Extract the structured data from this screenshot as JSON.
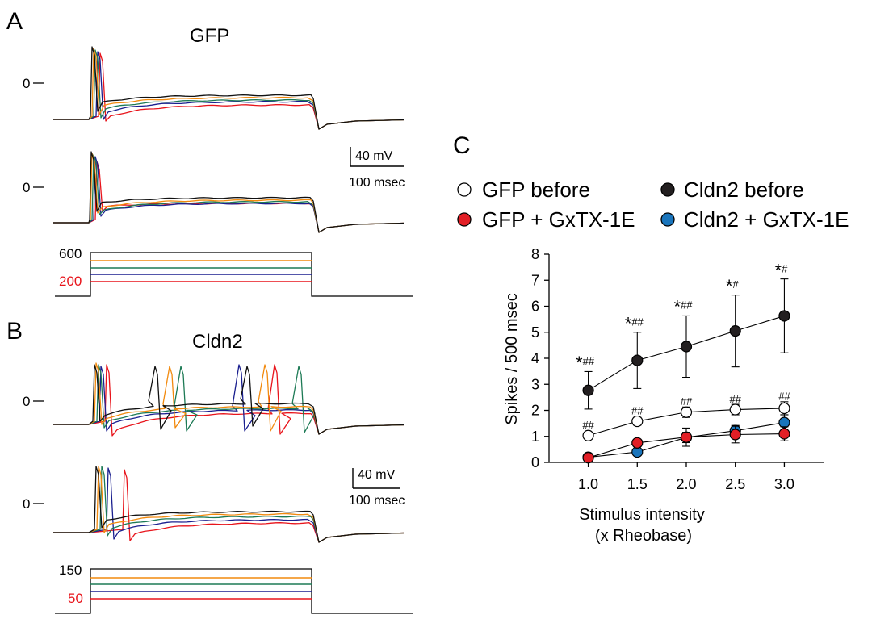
{
  "panels": {
    "a": {
      "letter": "A",
      "title": "GFP"
    },
    "b": {
      "letter": "B",
      "title": "Cldn2"
    },
    "c": {
      "letter": "C"
    }
  },
  "traces": {
    "zero_label": "0",
    "colors": [
      "#e8141b",
      "#1a1f8f",
      "#1d7a55",
      "#f28a0e",
      "#111111"
    ],
    "scale_bar": {
      "voltage": "40 mV",
      "time": "100 msec"
    }
  },
  "stimulus": {
    "gfp": {
      "top_label": "600",
      "bottom_label": "200"
    },
    "cldn2": {
      "top_label": "150",
      "bottom_label": "50"
    }
  },
  "chart_data": {
    "type": "line",
    "x": [
      1.0,
      1.5,
      2.0,
      2.5,
      3.0
    ],
    "x_tick_labels": [
      "1.0",
      "1.5",
      "2.0",
      "2.5",
      "3.0"
    ],
    "xlim": [
      0.6,
      3.4
    ],
    "ylim": [
      0,
      8
    ],
    "y_ticks": [
      0,
      1,
      2,
      3,
      4,
      5,
      6,
      7,
      8
    ],
    "ylabel": "Spikes / 500 msec",
    "xlabel_line1": "Stimulus intensity",
    "xlabel_line2": "(x Rheobase)",
    "legend_position": "top",
    "series": [
      {
        "name": "GFP before",
        "marker_fill": "#ffffff",
        "values": [
          1.03,
          1.58,
          1.93,
          2.03,
          2.08
        ],
        "err": [
          0.1,
          0.15,
          0.2,
          0.2,
          0.25
        ]
      },
      {
        "name": "Cldn2 before",
        "marker_fill": "#231f20",
        "values": [
          2.77,
          3.92,
          4.45,
          5.05,
          5.63
        ],
        "err": [
          0.72,
          1.08,
          1.18,
          1.38,
          1.42
        ]
      },
      {
        "name": "GFP + GxTX-1E",
        "marker_fill": "#e21f26",
        "values": [
          0.18,
          0.75,
          0.97,
          1.07,
          1.1
        ],
        "err": [
          0.05,
          0.1,
          0.35,
          0.32,
          0.27
        ]
      },
      {
        "name": "Cldn2 + GxTX-1E",
        "marker_fill": "#1a75bc",
        "values": [
          0.2,
          0.4,
          0.96,
          1.22,
          1.53
        ],
        "err": [
          0.05,
          0.1,
          0.2,
          0.2,
          0.3
        ]
      }
    ],
    "annotations": [
      {
        "x": 1.0,
        "y": 3.6,
        "star": "*",
        "hash": "##"
      },
      {
        "x": 1.5,
        "y": 5.1,
        "star": "*",
        "hash": "##"
      },
      {
        "x": 2.0,
        "y": 5.75,
        "star": "*",
        "hash": "##"
      },
      {
        "x": 2.5,
        "y": 6.55,
        "star": "*",
        "hash": "#"
      },
      {
        "x": 3.0,
        "y": 7.15,
        "star": "*",
        "hash": "#"
      },
      {
        "x": 1.0,
        "y": 1.3,
        "star": "",
        "hash": "##"
      },
      {
        "x": 1.5,
        "y": 1.85,
        "star": "",
        "hash": "##"
      },
      {
        "x": 2.0,
        "y": 2.2,
        "star": "",
        "hash": "##"
      },
      {
        "x": 2.5,
        "y": 2.3,
        "star": "",
        "hash": "##"
      },
      {
        "x": 3.0,
        "y": 2.4,
        "star": "",
        "hash": "##"
      }
    ]
  }
}
